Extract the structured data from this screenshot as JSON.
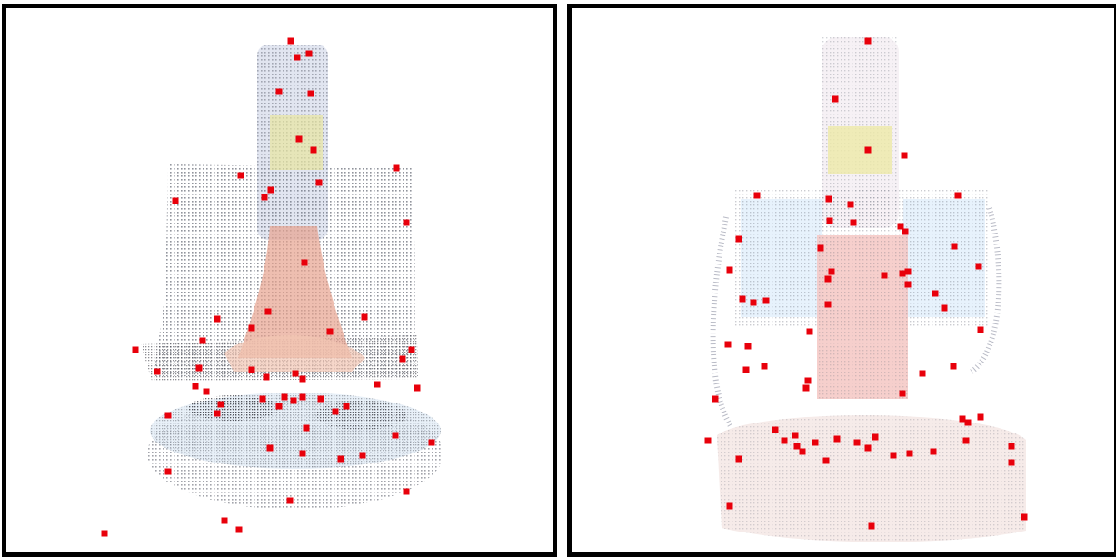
{
  "panels": [
    {
      "name": "left-point-cloud-view",
      "keypoint_color": "#e8000b",
      "cloud_colors": {
        "gray": "#8a8f9c",
        "blue": "#b7c9e6",
        "salmon": "#e39a86",
        "yellow": "#e4e08a",
        "dark": "#3c3e46"
      }
    },
    {
      "name": "right-point-cloud-view",
      "keypoint_color": "#e8000b",
      "cloud_colors": {
        "gray": "#9aa0b0",
        "blue": "#cfe2f4",
        "salmon": "#f1b3ad",
        "yellow": "#ecebb0",
        "dark": "#5a5d6a"
      }
    }
  ]
}
